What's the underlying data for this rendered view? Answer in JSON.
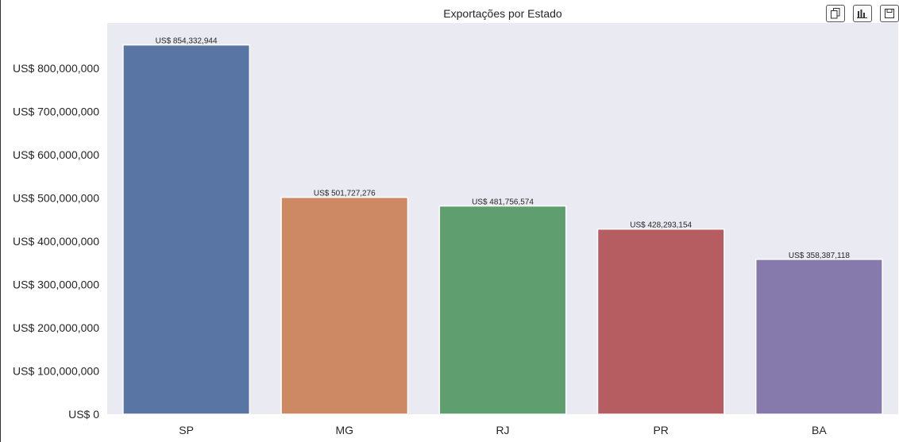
{
  "chart_data": {
    "type": "bar",
    "title": "Exportações por Estado",
    "xlabel": "",
    "ylabel": "",
    "categories": [
      "SP",
      "MG",
      "RJ",
      "PR",
      "BA"
    ],
    "values": [
      854332944,
      501727276,
      481756574,
      428293154,
      358387118
    ],
    "data_labels": [
      "US$ 854,332,944",
      "US$ 501,727,276",
      "US$ 481,756,574",
      "US$ 428,293,154",
      "US$ 358,387,118"
    ],
    "colors": [
      "#5975a4",
      "#cc8963",
      "#5f9e6e",
      "#b55d60",
      "#857aab"
    ],
    "yticks": [
      0,
      100000000,
      200000000,
      300000000,
      400000000,
      500000000,
      600000000,
      700000000,
      800000000
    ],
    "ytick_labels": [
      "US$ 0",
      "US$ 100,000,000",
      "US$ 200,000,000",
      "US$ 300,000,000",
      "US$ 400,000,000",
      "US$ 500,000,000",
      "US$ 600,000,000",
      "US$ 700,000,000",
      "US$ 800,000,000"
    ],
    "ylim": [
      0,
      905000000
    ],
    "grid": false,
    "background": "#eaeaf2"
  },
  "toolbar": {
    "buttons": [
      "copy-icon",
      "bar-chart-icon",
      "save-icon"
    ]
  }
}
